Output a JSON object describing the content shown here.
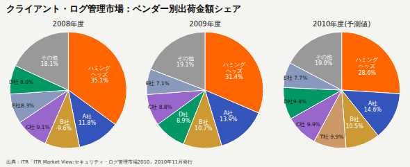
{
  "title": "クライアント・ログ管理市場：ベンダー別出荷金額シェア",
  "annotations": [
    "出典：ITR「ITR Market View:セキュリティ・ログ管理市場2010」2010年11月発行"
  ],
  "chart_data": [
    {
      "type": "pie",
      "title": "2008年度",
      "values": [
        35.1,
        11.8,
        9.6,
        9.1,
        8.3,
        8.0,
        18.1
      ],
      "value_labels": [
        "ハミング\nヘッズ\n35.1%",
        "A社\n11.8%",
        "B社\n9.6%",
        "C社 9.1%",
        "E社8.3%",
        "D社 8.0%",
        "その他\n18.1%"
      ],
      "colors": [
        "#FF6600",
        "#3355BB",
        "#CC9933",
        "#9966CC",
        "#8899BB",
        "#009966",
        "#999999"
      ],
      "data_labels": true
    },
    {
      "type": "pie",
      "title": "2009年度",
      "values": [
        31.4,
        13.9,
        10.7,
        8.9,
        8.8,
        7.1,
        19.1
      ],
      "value_labels": [
        "ハミング\nヘッズ\n31.4%",
        "A社\n13.9%",
        "B社\n10.7%",
        "D社\n8.9%",
        "C社 8.8%",
        "E社 7.1%",
        "その他\n19.1%"
      ],
      "colors": [
        "#FF6600",
        "#3355BB",
        "#CC9933",
        "#009966",
        "#9966CC",
        "#8899BB",
        "#999999"
      ],
      "data_labels": true
    },
    {
      "type": "pie",
      "title": "2010年度(予測値)",
      "values": [
        28.6,
        14.6,
        10.5,
        9.9,
        9.9,
        9.8,
        7.7,
        19.0
      ],
      "value_labels": [
        "ハミング\nヘッズ\n28.6%",
        "A社\n14.6%",
        "B社\n10.5%",
        "T社 9.9%",
        "C社 9.9%",
        "D社9.8%",
        "E社 7.7%",
        "その他\n19.0%"
      ],
      "colors": [
        "#FF6600",
        "#3355BB",
        "#CC9933",
        "#CC9966",
        "#9966CC",
        "#009966",
        "#8899BB",
        "#999999"
      ],
      "data_labels": true
    }
  ]
}
